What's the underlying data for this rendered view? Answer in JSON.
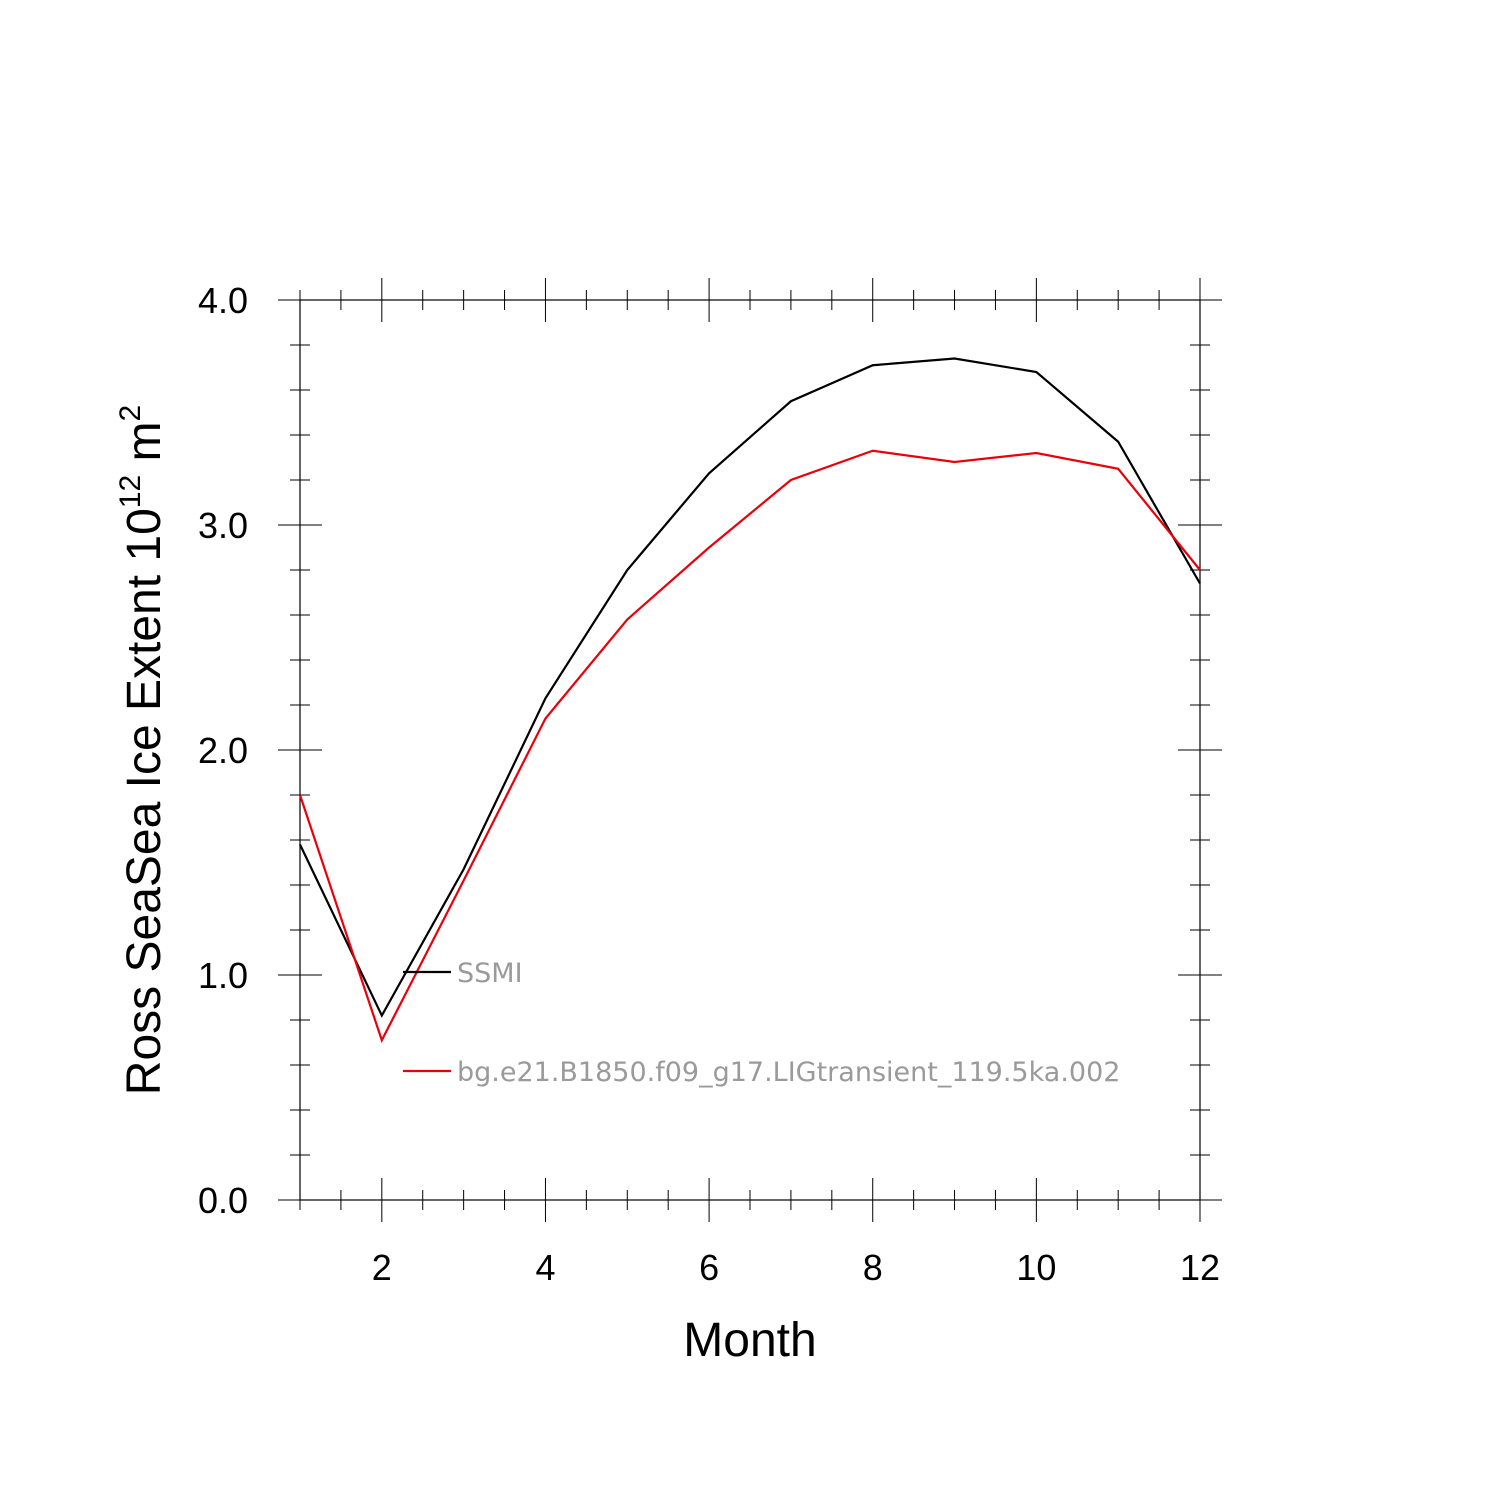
{
  "chart_data": {
    "type": "line",
    "xlabel": "Month",
    "ylabel_text": "Ross SeaSea Ice Extent 10",
    "ylabel_exp1": "12",
    "ylabel_unit": " m",
    "ylabel_exp2": "2",
    "xlim": [
      1,
      12
    ],
    "ylim": [
      0.0,
      4.0
    ],
    "x_ticks": [
      2,
      4,
      6,
      8,
      10,
      12
    ],
    "x_tick_labels": [
      "2",
      "4",
      "6",
      "8",
      "10",
      "12"
    ],
    "y_ticks": [
      0.0,
      1.0,
      2.0,
      3.0,
      4.0
    ],
    "y_tick_labels": [
      "0.0",
      "1.0",
      "2.0",
      "3.0",
      "4.0"
    ],
    "x": [
      1,
      2,
      3,
      4,
      5,
      6,
      7,
      8,
      9,
      10,
      11,
      12
    ],
    "series": [
      {
        "name": "SSMI",
        "color": "#000000",
        "values": [
          1.58,
          0.82,
          1.47,
          2.23,
          2.8,
          3.23,
          3.55,
          3.71,
          3.74,
          3.68,
          3.37,
          2.74
        ]
      },
      {
        "name": "bg.e21.B1850.f09_g17.LIGtransient_119.5ka.002",
        "color": "#e8000b",
        "values": [
          1.8,
          0.71,
          1.42,
          2.14,
          2.58,
          2.9,
          3.2,
          3.33,
          3.28,
          3.32,
          3.25,
          2.8
        ]
      }
    ],
    "legend_position": "inside-left"
  }
}
